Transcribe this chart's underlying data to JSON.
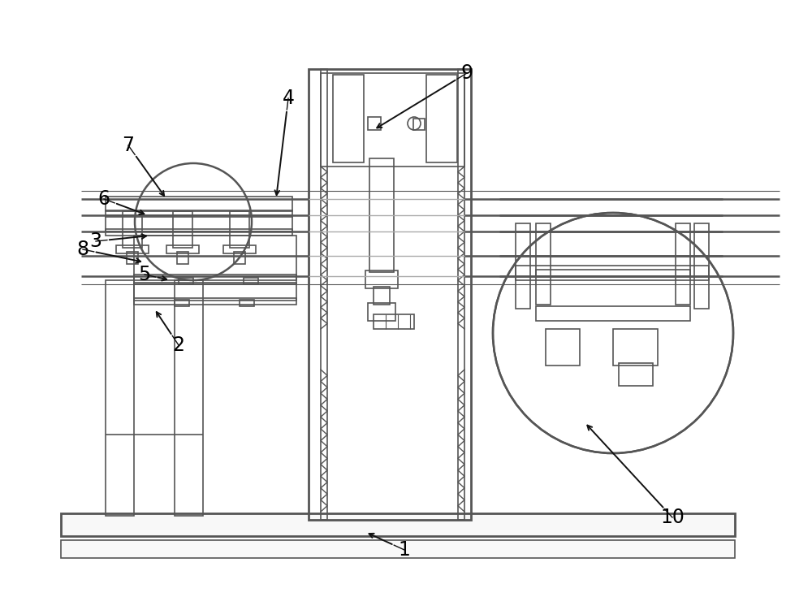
{
  "bg_color": "#ffffff",
  "lc": "#555555",
  "lw": 1.2,
  "tlw": 2.0,
  "fig_width": 10.0,
  "fig_height": 7.35
}
